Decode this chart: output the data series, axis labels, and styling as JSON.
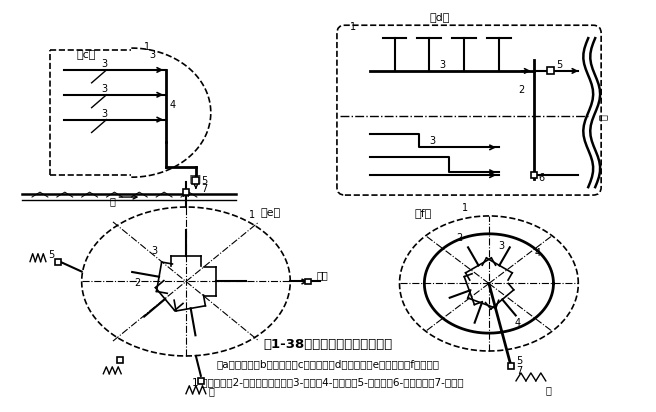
{
  "title": "图1-38排水管道系统的布置形式",
  "subtitle1": "（a）正交式（b）截流式（c）平行式（d）分区式（e）分散式（f）环绕式",
  "subtitle2": "1-城市边界；2-排水流域分界线；3-干管；4-主干管；5-污水厂；6-污水泵站；7-出水口",
  "bg_color": "#ffffff",
  "label_c": "（c）",
  "label_d": "（d）",
  "label_e": "（e）",
  "label_f": "（f）"
}
